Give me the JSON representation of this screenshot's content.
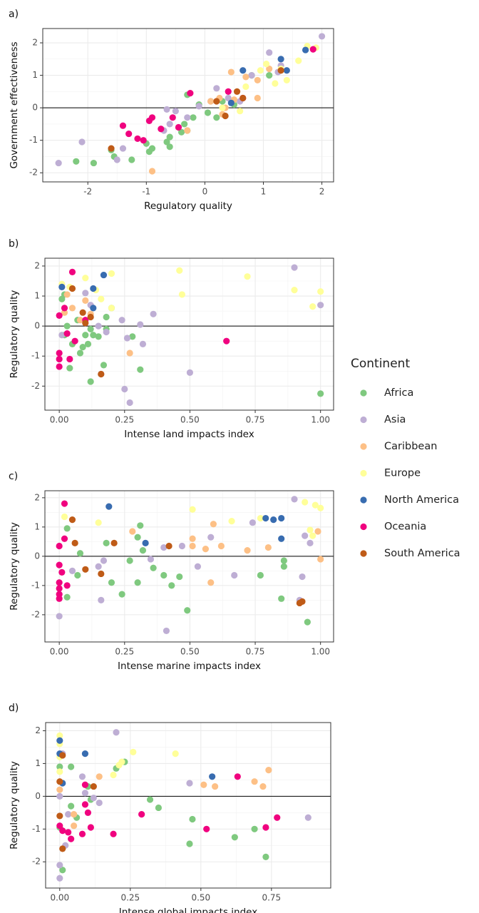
{
  "chart_data": [
    {
      "type": "scatter",
      "panel_label": "a)",
      "xlabel": "Regulatory quality",
      "ylabel": "Government effectiveness",
      "xlim": [
        -2.77,
        2.2
      ],
      "ylim": [
        -2.28,
        2.44
      ],
      "xticks": [
        -2,
        -1,
        0,
        1,
        2
      ],
      "yticks": [
        -2,
        -1,
        0,
        1,
        2
      ],
      "grid": true,
      "hline": 0,
      "series": [
        {
          "x": [
            -2.2,
            -1.9,
            -1.55,
            -1.6,
            -1.25,
            -1.0,
            -0.95,
            -0.9,
            -0.6,
            -0.65,
            -0.6,
            -0.4,
            -0.3,
            -0.35,
            -0.2,
            -0.1,
            0.05,
            -0.3,
            0.2,
            0.3,
            0.8,
            1.1,
            0.5
          ],
          "values": [
            -1.65,
            -1.7,
            -1.5,
            -1.3,
            -1.6,
            -1.1,
            -1.35,
            -1.25,
            -1.2,
            -1.05,
            -0.9,
            -0.75,
            -0.7,
            -0.5,
            -0.3,
            0.1,
            -0.15,
            0.4,
            -0.3,
            0.2,
            1.0,
            1.0,
            0.1
          ]
        },
        {
          "x": [
            -2.5,
            -2.1,
            -1.5,
            -1.4,
            -0.65,
            -0.6,
            -0.7,
            -0.5,
            -0.3,
            -0.1,
            0.1,
            0.4,
            0.6,
            0.8,
            1.1,
            1.3,
            1.25,
            2.0,
            0.2
          ],
          "values": [
            -1.7,
            -1.05,
            -1.6,
            -1.25,
            -0.05,
            -0.5,
            -0.7,
            -0.1,
            -0.3,
            0.05,
            0.2,
            0.3,
            0.2,
            1.0,
            1.7,
            1.3,
            1.1,
            2.2,
            0.6
          ]
        },
        {
          "x": [
            -0.9,
            -0.3,
            0.1,
            0.25,
            0.35,
            0.45,
            0.7,
            0.9,
            1.1,
            0.9,
            0.3,
            0.5
          ],
          "values": [
            -1.95,
            -0.7,
            0.2,
            0.3,
            0.0,
            1.1,
            0.95,
            0.85,
            1.2,
            0.3,
            -0.2,
            0.25
          ]
        },
        {
          "x": [
            0.3,
            0.6,
            0.7,
            0.95,
            1.2,
            1.4,
            1.6,
            1.75,
            1.9,
            1.3,
            1.05
          ],
          "values": [
            0.0,
            -0.1,
            0.65,
            1.15,
            0.75,
            0.85,
            1.45,
            1.9,
            1.85,
            1.2,
            1.35
          ]
        },
        {
          "x": [
            0.65,
            1.3,
            1.72,
            0.45,
            1.4
          ],
          "values": [
            1.15,
            1.5,
            1.78,
            0.15,
            1.15
          ]
        },
        {
          "x": [
            -1.4,
            -1.3,
            -1.15,
            -1.05,
            -0.95,
            -0.9,
            -0.55,
            -0.45,
            -0.25,
            0.4,
            0.65,
            -0.75,
            1.85
          ],
          "values": [
            -0.55,
            -0.8,
            -0.95,
            -1.0,
            -0.4,
            -0.3,
            -0.3,
            -0.6,
            0.45,
            0.5,
            0.3,
            -0.65,
            1.8
          ]
        },
        {
          "x": [
            -1.6,
            0.35,
            0.55,
            1.3,
            0.65,
            0.2
          ],
          "values": [
            -1.25,
            -0.25,
            0.5,
            1.15,
            0.3,
            0.2
          ]
        }
      ]
    },
    {
      "type": "scatter",
      "panel_label": "b)",
      "xlabel": "Intense land impacts index",
      "ylabel": "Regulatory quality",
      "xlim": [
        -0.055,
        1.05
      ],
      "ylim": [
        -2.8,
        2.26
      ],
      "xticks": [
        {
          "value": 0,
          "label": "0.00"
        },
        {
          "value": 0.25,
          "label": "0.25"
        },
        {
          "value": 0.5,
          "label": "0.50"
        },
        {
          "value": 0.75,
          "label": "0.75"
        },
        {
          "value": 1,
          "label": "1.00"
        }
      ],
      "yticks": [
        -2,
        -1,
        0,
        1,
        2
      ],
      "grid": true,
      "hline": 0,
      "series": [
        {
          "x": [
            0.01,
            0.02,
            0.03,
            0.02,
            0.05,
            0.04,
            0.08,
            0.09,
            0.1,
            0.11,
            0.12,
            0.13,
            0.15,
            0.12,
            0.17,
            0.18,
            0.2,
            0.28,
            0.31,
            0.18,
            1.0,
            0.07
          ],
          "values": [
            0.9,
            1.05,
            0.0,
            -0.3,
            -0.6,
            -1.4,
            -0.9,
            -0.7,
            -0.3,
            -0.6,
            -0.1,
            -0.3,
            -0.35,
            -1.85,
            -1.3,
            -0.1,
            0.6,
            -0.35,
            -1.45,
            0.3,
            -2.25,
            0.2
          ]
        },
        {
          "x": [
            0.01,
            0.1,
            0.12,
            0.15,
            0.18,
            0.24,
            0.26,
            0.25,
            0.27,
            0.31,
            0.32,
            0.36,
            0.5,
            0.9,
            1.0,
            0.16
          ],
          "values": [
            -0.3,
            1.1,
            0.7,
            0.0,
            -0.2,
            0.2,
            -0.4,
            -2.1,
            -2.55,
            0.05,
            -0.6,
            0.4,
            -1.55,
            1.95,
            0.7,
            -1.6
          ]
        },
        {
          "x": [
            0.02,
            0.05,
            0.1,
            0.12,
            0.27,
            0.08,
            0.03
          ],
          "values": [
            0.45,
            0.6,
            0.85,
            0.4,
            -0.9,
            0.2,
            1.05
          ]
        },
        {
          "x": [
            0.01,
            0.04,
            0.1,
            0.14,
            0.2,
            0.46,
            0.47,
            0.72,
            0.9,
            0.97,
            1.0,
            0.2,
            0.16
          ],
          "values": [
            1.4,
            1.3,
            1.6,
            1.2,
            1.75,
            1.85,
            1.05,
            1.65,
            1.2,
            0.65,
            1.15,
            0.6,
            0.9
          ]
        },
        {
          "x": [
            0.01,
            0.13,
            0.17,
            0.13
          ],
          "values": [
            1.3,
            1.25,
            1.7,
            0.6
          ]
        },
        {
          "x": [
            0.0,
            0.0,
            0.0,
            0.0,
            0.02,
            0.03,
            0.05,
            0.06,
            0.1,
            0.64,
            0.04
          ],
          "values": [
            -0.9,
            -1.1,
            -1.35,
            0.35,
            0.6,
            -0.25,
            1.8,
            -0.5,
            0.2,
            -0.5,
            -1.1
          ]
        },
        {
          "x": [
            0.05,
            0.09,
            0.12,
            0.16,
            0.1
          ],
          "values": [
            1.25,
            0.45,
            0.3,
            -1.6,
            0.1
          ]
        }
      ]
    },
    {
      "type": "scatter",
      "panel_label": "c)",
      "xlabel": "Intense marine impacts index",
      "ylabel": "Regulatory quality",
      "xlim": [
        -0.055,
        1.05
      ],
      "ylim": [
        -2.93,
        2.24
      ],
      "xticks": [
        {
          "value": 0,
          "label": "0.00"
        },
        {
          "value": 0.25,
          "label": "0.25"
        },
        {
          "value": 0.5,
          "label": "0.50"
        },
        {
          "value": 0.75,
          "label": "0.75"
        },
        {
          "value": 1,
          "label": "1.00"
        }
      ],
      "yticks": [
        -2,
        -1,
        0,
        1,
        2
      ],
      "grid": true,
      "hline": 0,
      "series": [
        {
          "x": [
            0.03,
            0.03,
            0.07,
            0.08,
            0.18,
            0.2,
            0.24,
            0.27,
            0.3,
            0.31,
            0.32,
            0.36,
            0.4,
            0.43,
            0.46,
            0.49,
            0.77,
            0.85,
            0.86,
            0.86,
            0.95,
            0.3
          ],
          "values": [
            0.95,
            -1.4,
            -0.65,
            0.1,
            0.45,
            -0.9,
            -1.3,
            -0.15,
            -0.9,
            1.05,
            0.2,
            -0.4,
            -0.65,
            -1.0,
            -0.7,
            -1.85,
            -0.65,
            -1.45,
            -0.35,
            -0.15,
            -2.25,
            0.65
          ]
        },
        {
          "x": [
            0.0,
            0.05,
            0.15,
            0.16,
            0.17,
            0.35,
            0.4,
            0.41,
            0.47,
            0.53,
            0.58,
            0.67,
            0.74,
            0.9,
            0.93,
            0.94,
            0.96,
            0.92
          ],
          "values": [
            -2.05,
            -0.5,
            -0.35,
            -1.5,
            -0.15,
            -0.1,
            0.3,
            -2.55,
            0.35,
            -0.35,
            0.65,
            -0.65,
            1.15,
            1.95,
            -0.7,
            0.7,
            0.45,
            -1.5
          ]
        },
        {
          "x": [
            0.28,
            0.51,
            0.51,
            0.56,
            0.58,
            0.62,
            0.72,
            0.8,
            0.99,
            1.0,
            0.59
          ],
          "values": [
            0.85,
            0.35,
            0.6,
            0.25,
            -0.9,
            0.35,
            0.2,
            0.3,
            0.85,
            -0.1,
            1.1
          ]
        },
        {
          "x": [
            0.02,
            0.15,
            0.51,
            0.66,
            0.77,
            0.94,
            0.96,
            0.98,
            1.0,
            0.97
          ],
          "values": [
            1.35,
            1.15,
            1.6,
            1.2,
            1.3,
            1.85,
            0.9,
            1.75,
            1.65,
            0.7
          ]
        },
        {
          "x": [
            0.19,
            0.33,
            0.79,
            0.82,
            0.85,
            0.85
          ],
          "values": [
            1.7,
            0.45,
            1.3,
            1.25,
            1.3,
            0.6
          ]
        },
        {
          "x": [
            0.0,
            0.0,
            0.0,
            0.0,
            0.0,
            0.01,
            0.02,
            0.02,
            0.03,
            0.0
          ],
          "values": [
            0.35,
            -0.9,
            -1.1,
            -1.3,
            -0.3,
            -0.55,
            1.8,
            0.6,
            -1.0,
            -1.45
          ]
        },
        {
          "x": [
            0.05,
            0.06,
            0.1,
            0.16,
            0.21,
            0.42,
            0.92,
            0.93
          ],
          "values": [
            1.25,
            0.45,
            -0.45,
            -0.6,
            0.45,
            0.35,
            -1.6,
            -1.55
          ]
        }
      ]
    },
    {
      "type": "scatter",
      "panel_label": "d)",
      "xlabel": "Intense global impacts index",
      "ylabel": "Regulatory quality",
      "xlim": [
        -0.05,
        0.96
      ],
      "ylim": [
        -2.8,
        2.25
      ],
      "xticks": [
        {
          "value": 0,
          "label": "0.00"
        },
        {
          "value": 0.25,
          "label": "0.25"
        },
        {
          "value": 0.5,
          "label": "0.50"
        },
        {
          "value": 0.75,
          "label": "0.75"
        }
      ],
      "yticks": [
        -2,
        -1,
        0,
        1,
        2
      ],
      "grid": true,
      "hline": 0,
      "series": [
        {
          "x": [
            0.0,
            0.0,
            0.04,
            0.04,
            0.1,
            0.11,
            0.2,
            0.23,
            0.32,
            0.35,
            0.47,
            0.46,
            0.62,
            0.69,
            0.73,
            0.01,
            0.06
          ],
          "values": [
            -0.95,
            0.9,
            0.9,
            -0.3,
            0.3,
            -0.1,
            0.85,
            1.05,
            -0.1,
            -0.35,
            -0.7,
            -1.45,
            -1.25,
            -1.0,
            -1.85,
            -2.25,
            -0.65
          ]
        },
        {
          "x": [
            0.0,
            0.0,
            0.0,
            0.02,
            0.03,
            0.08,
            0.12,
            0.14,
            0.2,
            0.46,
            0.88,
            0.09,
            0.01
          ],
          "values": [
            -2.5,
            -2.1,
            0.0,
            -1.5,
            -0.55,
            0.6,
            -0.05,
            -0.2,
            1.95,
            0.4,
            -0.65,
            0.1,
            1.3
          ]
        },
        {
          "x": [
            0.0,
            0.05,
            0.14,
            0.51,
            0.55,
            0.69,
            0.72,
            0.74,
            0.05
          ],
          "values": [
            0.2,
            -0.9,
            0.6,
            0.35,
            0.3,
            0.45,
            0.3,
            0.8,
            -0.55
          ]
        },
        {
          "x": [
            0.0,
            0.0,
            0.0,
            0.0,
            0.19,
            0.21,
            0.26,
            0.41,
            0.22
          ],
          "values": [
            1.85,
            1.6,
            1.2,
            0.75,
            0.65,
            0.95,
            1.35,
            1.3,
            1.05
          ]
        },
        {
          "x": [
            0.0,
            0.0,
            0.09,
            0.54,
            0.01
          ],
          "values": [
            1.7,
            1.3,
            1.3,
            0.6,
            0.4
          ]
        },
        {
          "x": [
            0.0,
            0.01,
            0.03,
            0.04,
            0.08,
            0.09,
            0.1,
            0.11,
            0.19,
            0.29,
            0.52,
            0.63,
            0.73,
            0.77,
            0.09
          ],
          "values": [
            -0.9,
            -1.05,
            -1.1,
            -1.3,
            -1.15,
            -0.25,
            -0.5,
            -0.95,
            -1.15,
            -0.55,
            -1.0,
            0.6,
            -0.95,
            -0.65,
            0.35
          ]
        },
        {
          "x": [
            0.0,
            0.01,
            0.01,
            0.12,
            0.0
          ],
          "values": [
            0.45,
            -1.6,
            1.25,
            0.3,
            -0.6
          ]
        }
      ]
    }
  ],
  "legend": {
    "title": "Continent",
    "position": "right",
    "names": [
      "Africa",
      "Asia",
      "Caribbean",
      "Europe",
      "North America",
      "Oceania",
      "South America"
    ],
    "colors": [
      "#7fc97f",
      "#beaed4",
      "#fdc086",
      "#ffff99",
      "#386cb0",
      "#f0027f",
      "#bf5b17"
    ]
  }
}
